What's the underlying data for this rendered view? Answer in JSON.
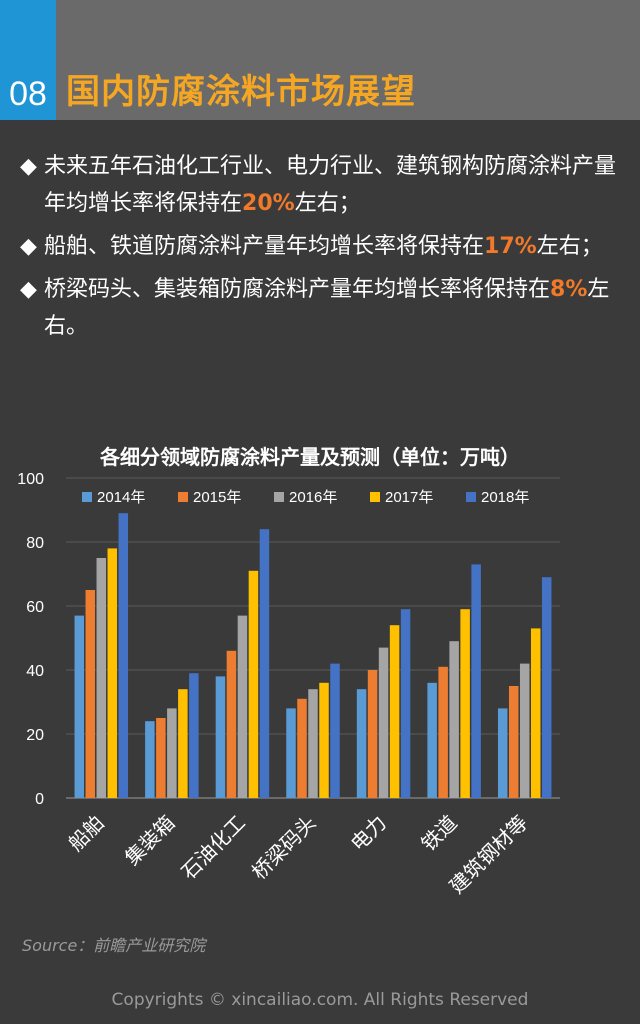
{
  "header": {
    "number": "08",
    "title": "国内防腐涂料市场展望"
  },
  "bullets": [
    {
      "mark": "◆",
      "before": "未来五年石油化工行业、电力行业、建筑钢构防腐涂料产量年均增长率将保持在",
      "highlight": "20%",
      "after": "左右；"
    },
    {
      "mark": "◆",
      "before": "船舶、铁道防腐涂料产量年均增长率将保持在",
      "highlight": "17%",
      "after": "左右；"
    },
    {
      "mark": "◆",
      "before": "桥梁码头、集装箱防腐涂料产量年均增长率将保持在",
      "highlight": "8%",
      "after": "左右。"
    }
  ],
  "chart_data": {
    "type": "bar",
    "title": "各细分领域防腐涂料产量及预测（单位：万吨）",
    "categories": [
      "船舶",
      "集装箱",
      "石油化工",
      "桥梁码头",
      "电力",
      "铁道",
      "建筑钢材等"
    ],
    "series": [
      {
        "name": "2014年",
        "color": "#5b9bd5",
        "values": [
          57,
          24,
          38,
          28,
          34,
          36,
          28
        ]
      },
      {
        "name": "2015年",
        "color": "#ed7d31",
        "values": [
          65,
          25,
          46,
          31,
          40,
          41,
          35
        ]
      },
      {
        "name": "2016年",
        "color": "#a5a5a5",
        "values": [
          75,
          28,
          57,
          34,
          47,
          49,
          42
        ]
      },
      {
        "name": "2017年",
        "color": "#ffc000",
        "values": [
          78,
          34,
          71,
          36,
          54,
          59,
          53
        ]
      },
      {
        "name": "2018年",
        "color": "#4472c4",
        "values": [
          89,
          39,
          84,
          42,
          59,
          73,
          69
        ]
      }
    ],
    "ylim": [
      0,
      100
    ],
    "yticks": [
      0,
      20,
      40,
      60,
      80,
      100
    ],
    "xlabel": "",
    "ylabel": "",
    "grid": true,
    "legend": "top"
  },
  "footer": {
    "source": "Source：前瞻产业研究院",
    "copyright": "Copyrights © xincailiao.com. All Rights Reserved"
  }
}
